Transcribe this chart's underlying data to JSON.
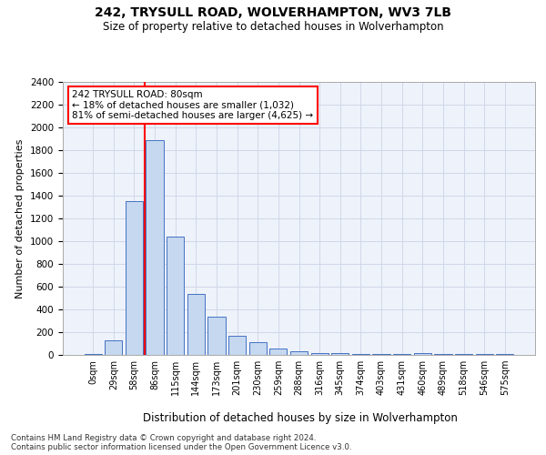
{
  "title1": "242, TRYSULL ROAD, WOLVERHAMPTON, WV3 7LB",
  "title2": "Size of property relative to detached houses in Wolverhampton",
  "xlabel": "Distribution of detached houses by size in Wolverhampton",
  "ylabel": "Number of detached properties",
  "footnote1": "Contains HM Land Registry data © Crown copyright and database right 2024.",
  "footnote2": "Contains public sector information licensed under the Open Government Licence v3.0.",
  "bar_labels": [
    "0sqm",
    "29sqm",
    "58sqm",
    "86sqm",
    "115sqm",
    "144sqm",
    "173sqm",
    "201sqm",
    "230sqm",
    "259sqm",
    "288sqm",
    "316sqm",
    "345sqm",
    "374sqm",
    "403sqm",
    "431sqm",
    "460sqm",
    "489sqm",
    "518sqm",
    "546sqm",
    "575sqm"
  ],
  "bar_values": [
    10,
    130,
    1350,
    1890,
    1040,
    540,
    335,
    170,
    110,
    55,
    35,
    20,
    15,
    5,
    5,
    5,
    15,
    5,
    5,
    5,
    10
  ],
  "bar_color": "#c5d8f0",
  "bar_edge_color": "#4472c4",
  "grid_color": "#d0d8e8",
  "bg_color": "#eef2fa",
  "vline_color": "red",
  "vline_x_index": 3,
  "annotation_text": "242 TRYSULL ROAD: 80sqm\n← 18% of detached houses are smaller (1,032)\n81% of semi-detached houses are larger (4,625) →",
  "ylim": [
    0,
    2400
  ],
  "yticks": [
    0,
    200,
    400,
    600,
    800,
    1000,
    1200,
    1400,
    1600,
    1800,
    2000,
    2200,
    2400
  ]
}
